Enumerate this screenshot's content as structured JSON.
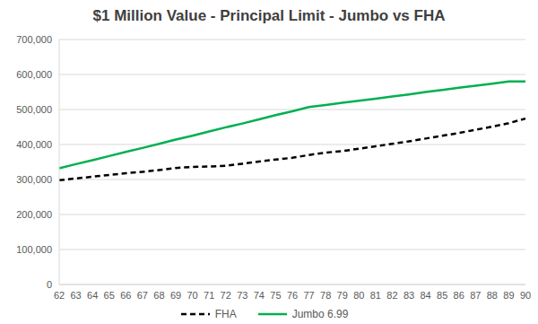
{
  "chart_data": {
    "type": "line",
    "title": "$1 Million Value - Principal Limit - Jumbo vs FHA",
    "categories": [
      "62",
      "63",
      "64",
      "65",
      "66",
      "67",
      "68",
      "69",
      "70",
      "71",
      "72",
      "73",
      "74",
      "75",
      "76",
      "77",
      "78",
      "79",
      "80",
      "81",
      "82",
      "83",
      "84",
      "85",
      "86",
      "87",
      "88",
      "89",
      "90"
    ],
    "series": [
      {
        "name": "FHA",
        "color": "#000000",
        "line_style": "dashed",
        "values": [
          298000,
          303000,
          308000,
          313000,
          318000,
          322000,
          327000,
          333000,
          336000,
          337000,
          339000,
          345000,
          351000,
          357000,
          362000,
          370000,
          377000,
          381000,
          388000,
          395000,
          402000,
          409000,
          417000,
          425000,
          433000,
          442000,
          451000,
          461000,
          474000
        ]
      },
      {
        "name": "Jumbo 6.99",
        "color": "#00b050",
        "line_style": "solid",
        "values": [
          332000,
          344000,
          355000,
          367000,
          379000,
          390000,
          402000,
          414000,
          425000,
          437000,
          449000,
          460000,
          472000,
          484000,
          495000,
          507000,
          513000,
          519000,
          525000,
          531000,
          537000,
          543000,
          550000,
          556000,
          562000,
          568000,
          574000,
          580000,
          580000
        ]
      }
    ],
    "ylim": [
      0,
      700000
    ],
    "yticks": [
      0,
      {
        "value": 100000,
        "label": "100,000"
      },
      {
        "value": 200000,
        "label": "200,000"
      },
      {
        "value": 300000,
        "label": "300,000"
      },
      {
        "value": 400000,
        "label": "400,000"
      },
      {
        "value": 500000,
        "label": "500,000"
      },
      {
        "value": 600000,
        "label": "600,000"
      },
      {
        "value": 700000,
        "label": "700,000"
      }
    ],
    "grid": true,
    "legend": "bottom"
  }
}
